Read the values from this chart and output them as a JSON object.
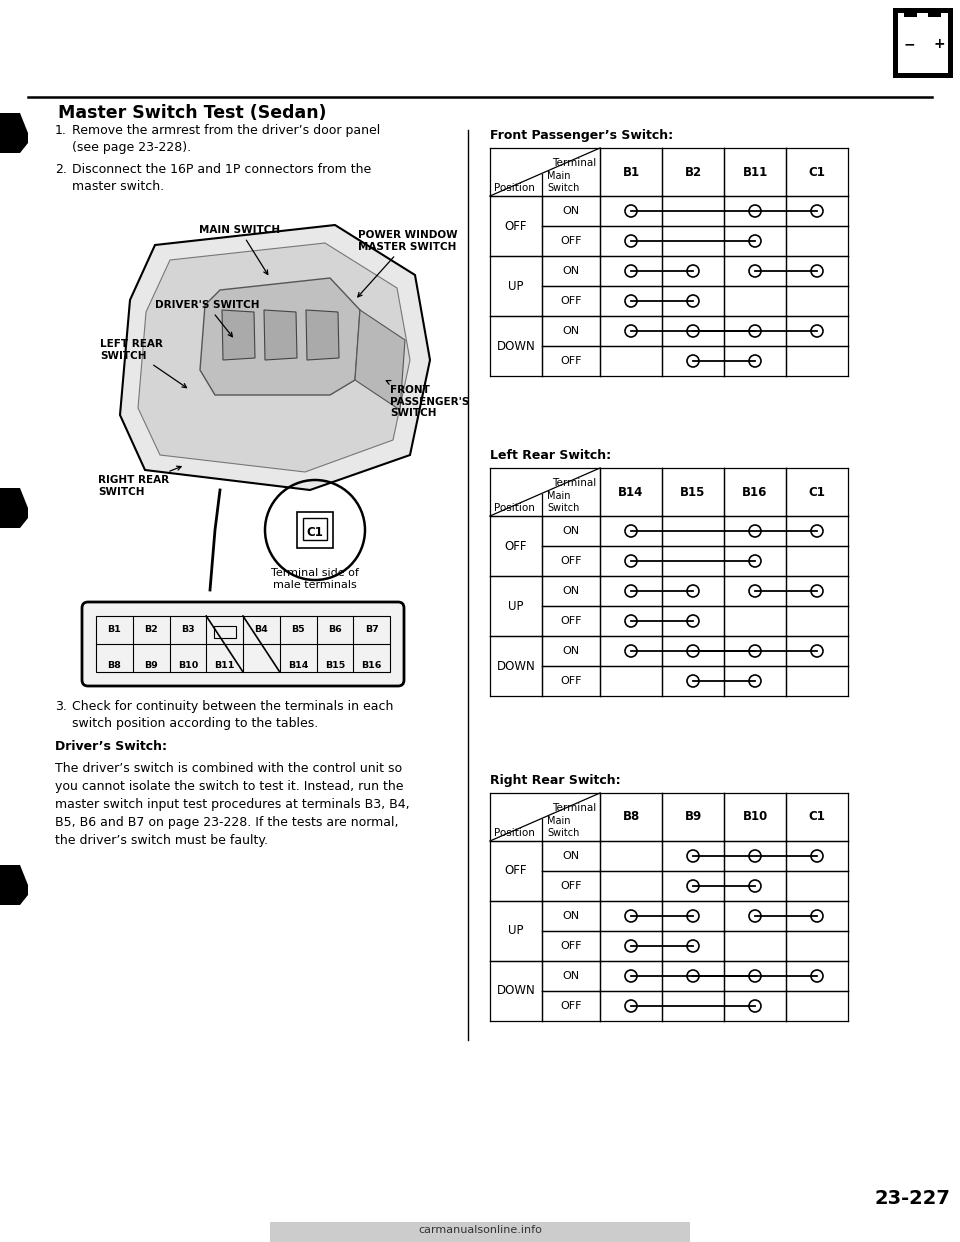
{
  "title": "Master Switch Test (Sedan)",
  "page_num": "23-227",
  "bg": "#ffffff",
  "step1": "Remove the armrest from the driver’s door panel\n(see page 23-228).",
  "step2": "Disconnect the 16P and 1P connectors from the\nmaster switch.",
  "step3": "Check for continuity between the terminals in each\nswitch position according to the tables.",
  "drivers_title": "Driver’s Switch:",
  "drivers_body": "The driver’s switch is combined with the control unit so\nyou cannot isolate the switch to test it. Instead, run the\nmaster switch input test procedures at terminals B3, B4,\nB5, B6 and B7 on page 23-228. If the tests are normal,\nthe driver’s switch must be faulty.",
  "fp_title": "Front Passenger’s Switch:",
  "fp_cols": [
    "B1",
    "B2",
    "B11",
    "C1"
  ],
  "fp_rows": [
    [
      "OFF",
      "ON",
      [
        [
          0,
          2,
          3
        ]
      ]
    ],
    [
      "OFF",
      "OFF",
      [
        [
          0,
          2
        ]
      ]
    ],
    [
      "UP",
      "ON",
      [
        [
          0,
          1
        ],
        [
          2,
          3
        ]
      ]
    ],
    [
      "UP",
      "OFF",
      [
        [
          0,
          1
        ]
      ]
    ],
    [
      "DOWN",
      "ON",
      [
        [
          1,
          2
        ],
        [
          0,
          3
        ]
      ]
    ],
    [
      "DOWN",
      "OFF",
      [
        [
          1,
          2
        ]
      ]
    ]
  ],
  "lr_title": "Left Rear Switch:",
  "lr_cols": [
    "B14",
    "B15",
    "B16",
    "C1"
  ],
  "lr_rows": [
    [
      "OFF",
      "ON",
      [
        [
          0,
          2,
          3
        ]
      ]
    ],
    [
      "OFF",
      "OFF",
      [
        [
          0,
          2
        ]
      ]
    ],
    [
      "UP",
      "ON",
      [
        [
          0,
          1
        ],
        [
          2,
          3
        ]
      ]
    ],
    [
      "UP",
      "OFF",
      [
        [
          0,
          1
        ]
      ]
    ],
    [
      "DOWN",
      "ON",
      [
        [
          1,
          2
        ],
        [
          0,
          3
        ]
      ]
    ],
    [
      "DOWN",
      "OFF",
      [
        [
          1,
          2
        ]
      ]
    ]
  ],
  "rr_title": "Right Rear Switch:",
  "rr_cols": [
    "B8",
    "B9",
    "B10",
    "C1"
  ],
  "rr_rows": [
    [
      "OFF",
      "ON",
      [
        [
          1,
          2,
          3
        ]
      ]
    ],
    [
      "OFF",
      "OFF",
      [
        [
          1,
          2
        ]
      ]
    ],
    [
      "UP",
      "ON",
      [
        [
          0,
          1
        ],
        [
          2,
          3
        ]
      ]
    ],
    [
      "UP",
      "OFF",
      [
        [
          0,
          1
        ]
      ]
    ],
    [
      "DOWN",
      "ON",
      [
        [
          0,
          2
        ],
        [
          1,
          3
        ]
      ]
    ],
    [
      "DOWN",
      "OFF",
      [
        [
          0,
          2
        ]
      ]
    ]
  ],
  "connector_terminals_top": [
    "B1",
    "B2",
    "B3",
    "",
    "B4",
    "B5",
    "B6",
    "B7"
  ],
  "connector_terminals_bot": [
    "B8",
    "B9",
    "B10",
    "B11",
    "",
    "B14",
    "B15",
    "B16"
  ]
}
